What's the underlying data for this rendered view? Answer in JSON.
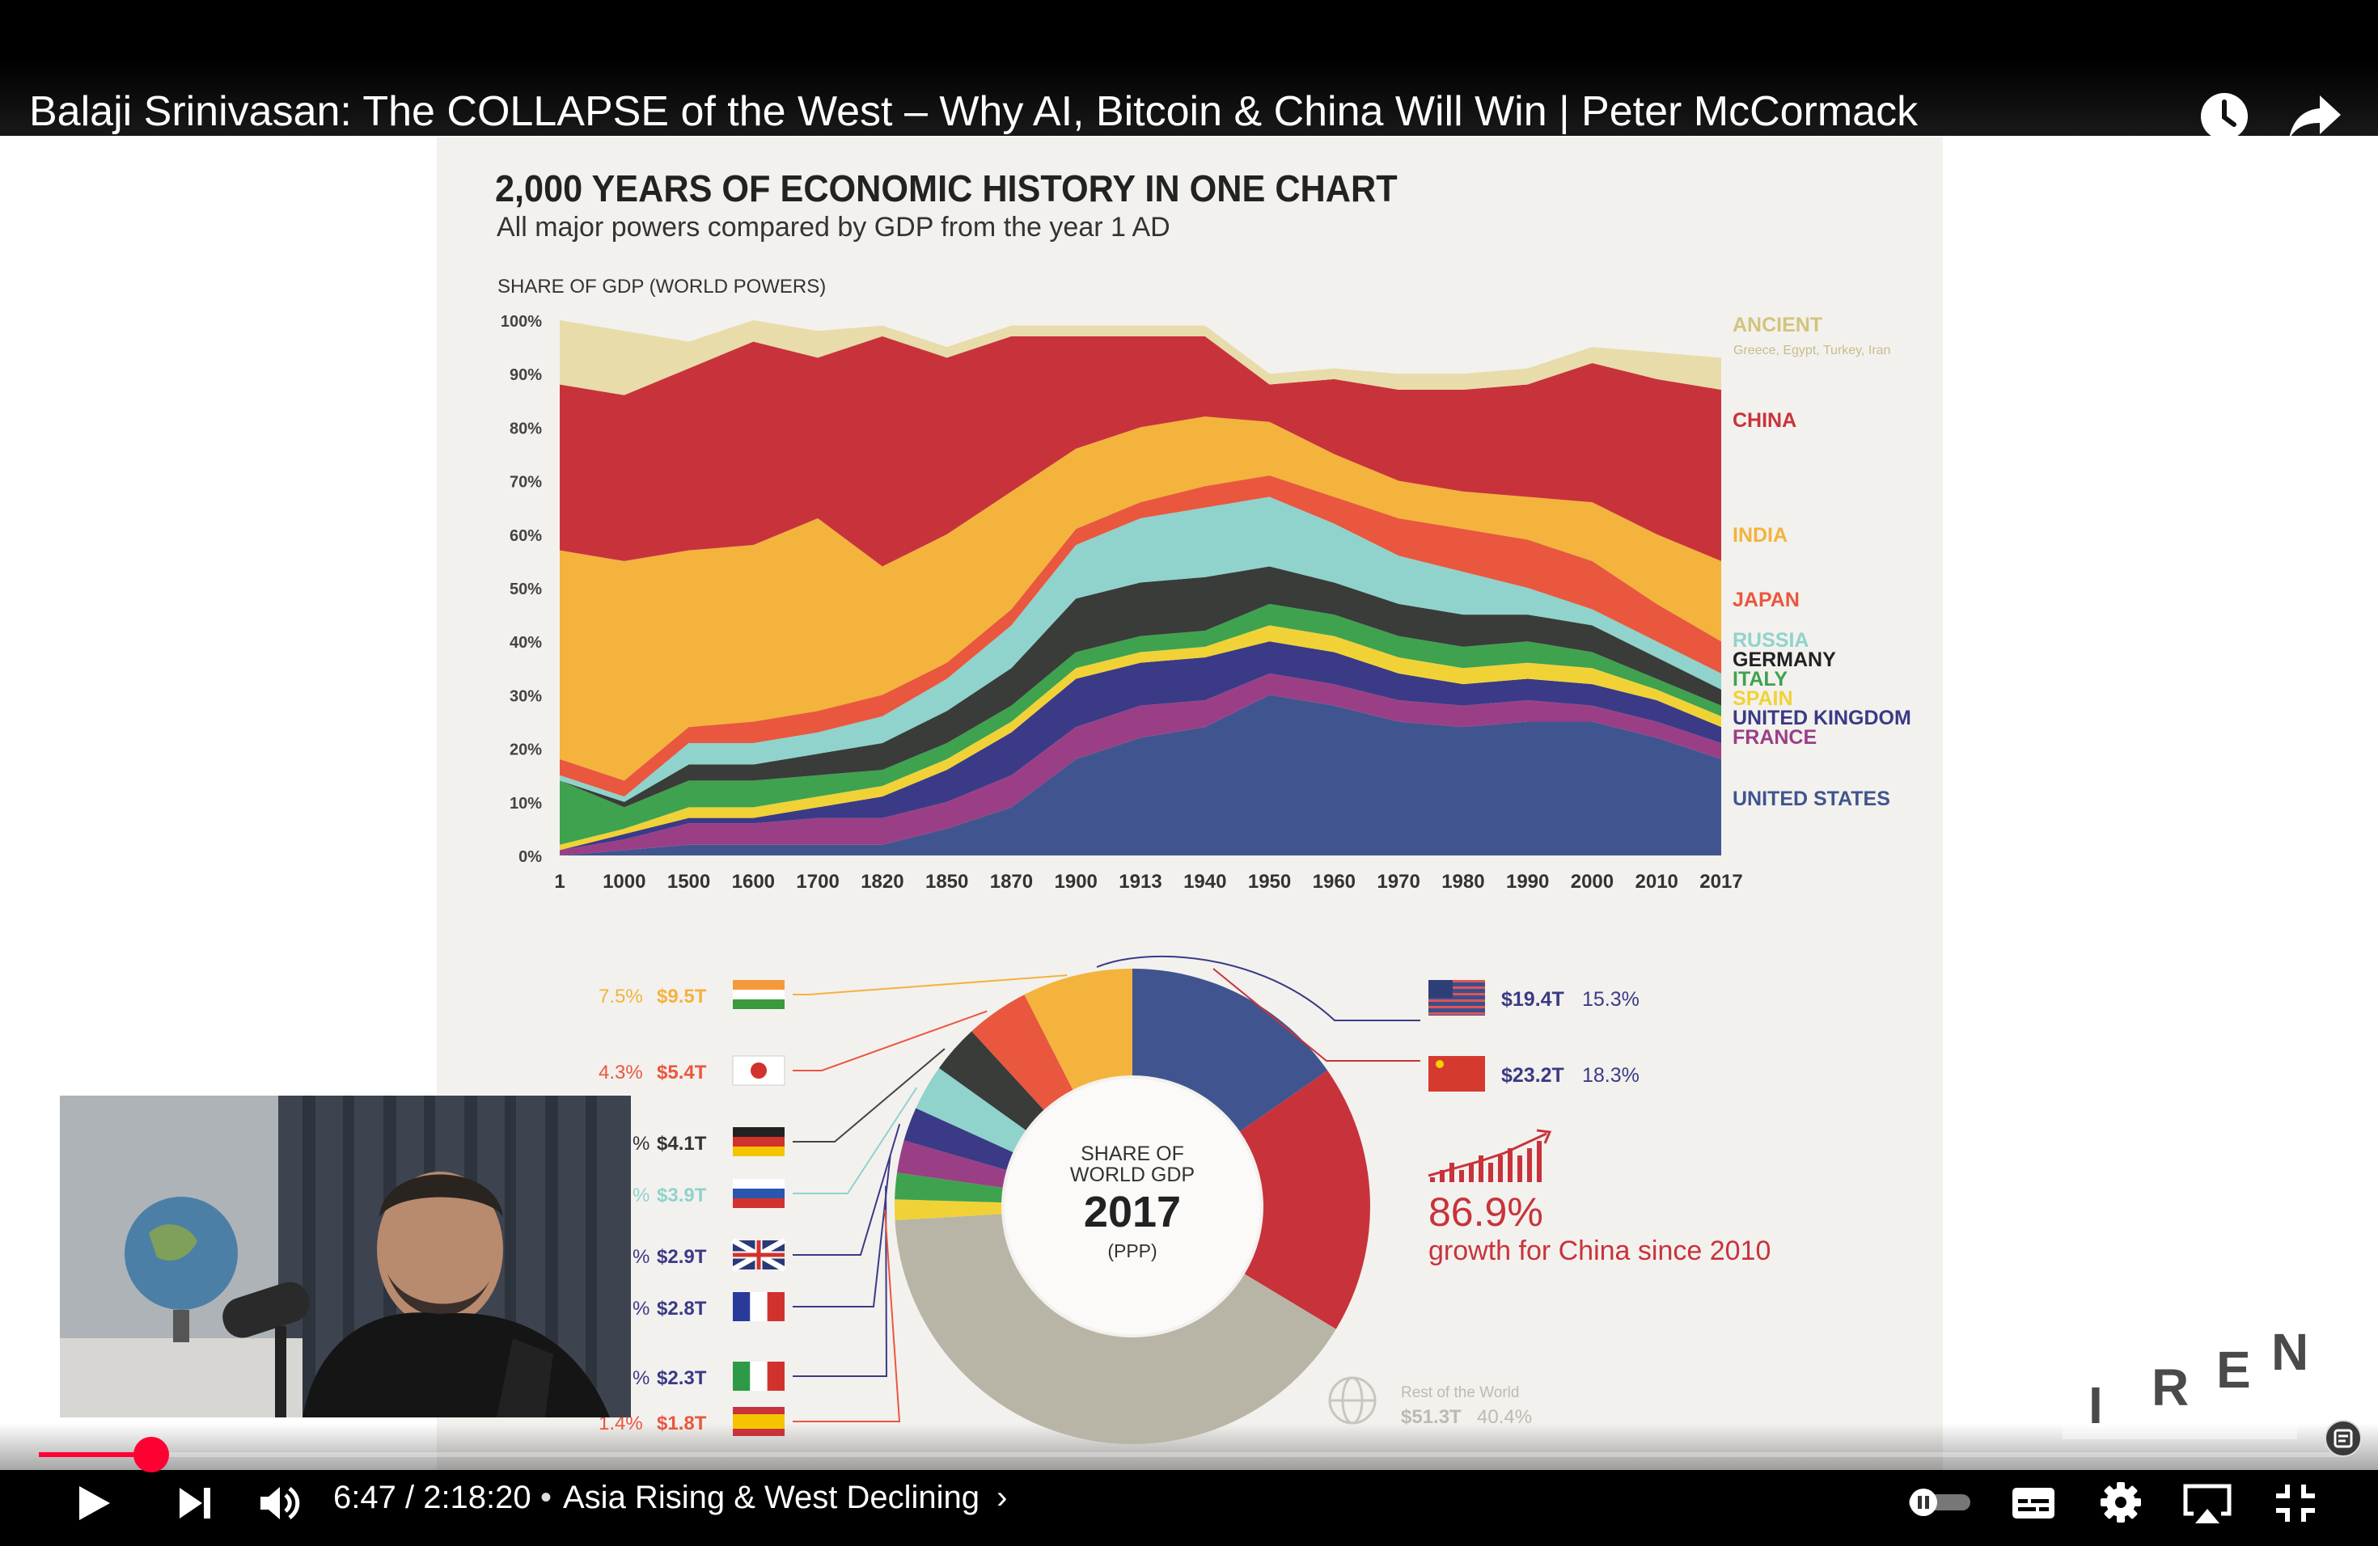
{
  "video": {
    "title": "Balaji Srinivasan: The COLLAPSE of the West – Why AI, Bitcoin & China Will Win | Peter McCormack",
    "time_current": "6:47",
    "time_total": "2:18:20",
    "time_display": "6:47 / 2:18:20",
    "chapter": "Asia Rising & West Declining",
    "chapter_chevron": "›",
    "progress_fraction": 0.049,
    "accent_color": "#ff0033"
  },
  "icons": {
    "watch_later": "clock-icon",
    "share": "share-icon",
    "play": "play-icon",
    "next": "next-icon",
    "volume": "volume-icon",
    "autoplay": "autoplay-toggle-icon",
    "subtitles": "subtitles-icon",
    "settings": "gear-icon",
    "cast": "airplay-icon",
    "exit_fullscreen": "exit-fullscreen-icon",
    "transcript": "transcript-icon"
  },
  "slide": {
    "headline": "2,000 YEARS OF ECONOMIC HISTORY IN ONE CHART",
    "subhead": "All major powers compared by GDP from the year 1 AD",
    "watermark": "IREN"
  },
  "chart_data": [
    {
      "type": "area",
      "stacked": true,
      "title": "SHARE OF GDP (WORLD POWERS)",
      "ylim": [
        0,
        100
      ],
      "y_ticks": [
        "100%",
        "90%",
        "80%",
        "70%",
        "60%",
        "50%",
        "40%",
        "30%",
        "20%",
        "10%",
        "0%"
      ],
      "categories": [
        "1",
        "1000",
        "1500",
        "1600",
        "1700",
        "1820",
        "1850",
        "1870",
        "1900",
        "1913",
        "1940",
        "1950",
        "1960",
        "1970",
        "1980",
        "1990",
        "2000",
        "2010",
        "2017"
      ],
      "series": [
        {
          "name": "UNITED STATES",
          "color": "#40558f",
          "values": [
            0,
            1,
            2,
            2,
            2,
            2,
            5,
            9,
            18,
            22,
            24,
            30,
            28,
            25,
            24,
            25,
            25,
            22,
            18
          ]
        },
        {
          "name": "FRANCE",
          "color": "#9a3f86",
          "values": [
            1,
            2,
            4,
            4,
            5,
            5,
            5,
            6,
            6,
            6,
            5,
            4,
            4,
            4,
            4,
            4,
            3,
            3,
            3
          ]
        },
        {
          "name": "UNITED KINGDOM",
          "color": "#3b3a86",
          "values": [
            0,
            1,
            1,
            1,
            2,
            4,
            6,
            8,
            9,
            8,
            8,
            6,
            6,
            5,
            4,
            4,
            4,
            4,
            3
          ]
        },
        {
          "name": "SPAIN",
          "color": "#f1d236",
          "values": [
            1,
            1,
            2,
            2,
            2,
            2,
            2,
            2,
            2,
            2,
            2,
            3,
            3,
            3,
            3,
            3,
            3,
            2,
            2
          ]
        },
        {
          "name": "ITALY",
          "color": "#3fa24f",
          "values": [
            12,
            4,
            5,
            5,
            4,
            3,
            3,
            3,
            3,
            3,
            3,
            4,
            4,
            4,
            4,
            4,
            3,
            2,
            2
          ]
        },
        {
          "name": "GERMANY",
          "color": "#3a3c39",
          "values": [
            0,
            1,
            3,
            3,
            4,
            5,
            6,
            7,
            10,
            10,
            10,
            7,
            6,
            6,
            6,
            5,
            5,
            4,
            3
          ]
        },
        {
          "name": "RUSSIA",
          "color": "#8fd3cc",
          "values": [
            1,
            1,
            4,
            4,
            4,
            5,
            6,
            8,
            10,
            12,
            13,
            13,
            11,
            9,
            8,
            5,
            3,
            3,
            3
          ]
        },
        {
          "name": "JAPAN",
          "color": "#e9573f",
          "values": [
            3,
            3,
            3,
            4,
            4,
            4,
            3,
            3,
            3,
            3,
            4,
            4,
            5,
            7,
            8,
            9,
            9,
            7,
            6
          ]
        },
        {
          "name": "INDIA",
          "color": "#f3b33d",
          "values": [
            39,
            41,
            33,
            33,
            36,
            24,
            24,
            22,
            15,
            14,
            13,
            10,
            8,
            7,
            7,
            8,
            11,
            13,
            15
          ]
        },
        {
          "name": "CHINA",
          "color": "#c8333b",
          "values": [
            31,
            31,
            34,
            38,
            30,
            43,
            33,
            29,
            21,
            17,
            15,
            7,
            14,
            17,
            19,
            21,
            26,
            29,
            32
          ]
        },
        {
          "name": "ANCIENT",
          "color": "#e8dcab",
          "values": [
            12,
            12,
            5,
            4,
            5,
            2,
            2,
            2,
            2,
            2,
            2,
            2,
            2,
            3,
            3,
            3,
            3,
            5,
            6
          ]
        }
      ],
      "legend": {
        "ancient_note": "Greece, Egypt, Turkey, Iran"
      }
    },
    {
      "type": "pie",
      "title": "SHARE OF WORLD GDP",
      "year": "2017",
      "basis": "(PPP)",
      "slices": [
        {
          "name": "United States",
          "value": 15.3,
          "color": "#40558f",
          "label_gdp": "$19.4T",
          "label_pct": "15.3%"
        },
        {
          "name": "China",
          "value": 18.3,
          "color": "#c8333b",
          "label_gdp": "$23.2T",
          "label_pct": "18.3%"
        },
        {
          "name": "Rest of the World",
          "value": 40.4,
          "color": "#b8b5a6",
          "label_gdp": "$51.3T",
          "label_pct": "40.4%"
        },
        {
          "name": "Spain",
          "value": 1.4,
          "color": "#f1d236",
          "label_gdp": "$1.8T",
          "label_pct": "1.4%"
        },
        {
          "name": "Italy",
          "value": 1.8,
          "color": "#3fa24f",
          "label_gdp": "$2.3T",
          "label_pct": "%"
        },
        {
          "name": "France",
          "value": 2.2,
          "color": "#9a3f86",
          "label_gdp": "$2.8T",
          "label_pct": "%"
        },
        {
          "name": "United Kingdom",
          "value": 2.3,
          "color": "#3b3a86",
          "label_gdp": "$2.9T",
          "label_pct": "%"
        },
        {
          "name": "Russia",
          "value": 3.1,
          "color": "#8fd3cc",
          "label_gdp": "$3.9T",
          "label_pct": "%"
        },
        {
          "name": "Germany",
          "value": 3.3,
          "color": "#3a3c39",
          "label_gdp": "$4.1T",
          "label_pct": "%"
        },
        {
          "name": "Japan",
          "value": 4.3,
          "color": "#e9573f",
          "label_gdp": "$5.4T",
          "label_pct": "4.3%"
        },
        {
          "name": "India",
          "value": 7.5,
          "color": "#f3b33d",
          "label_gdp": "$9.5T",
          "label_pct": "7.5%"
        }
      ],
      "callout": {
        "value": "86.9%",
        "text": "growth for China since 2010"
      },
      "rest_label": "Rest of the World"
    }
  ]
}
